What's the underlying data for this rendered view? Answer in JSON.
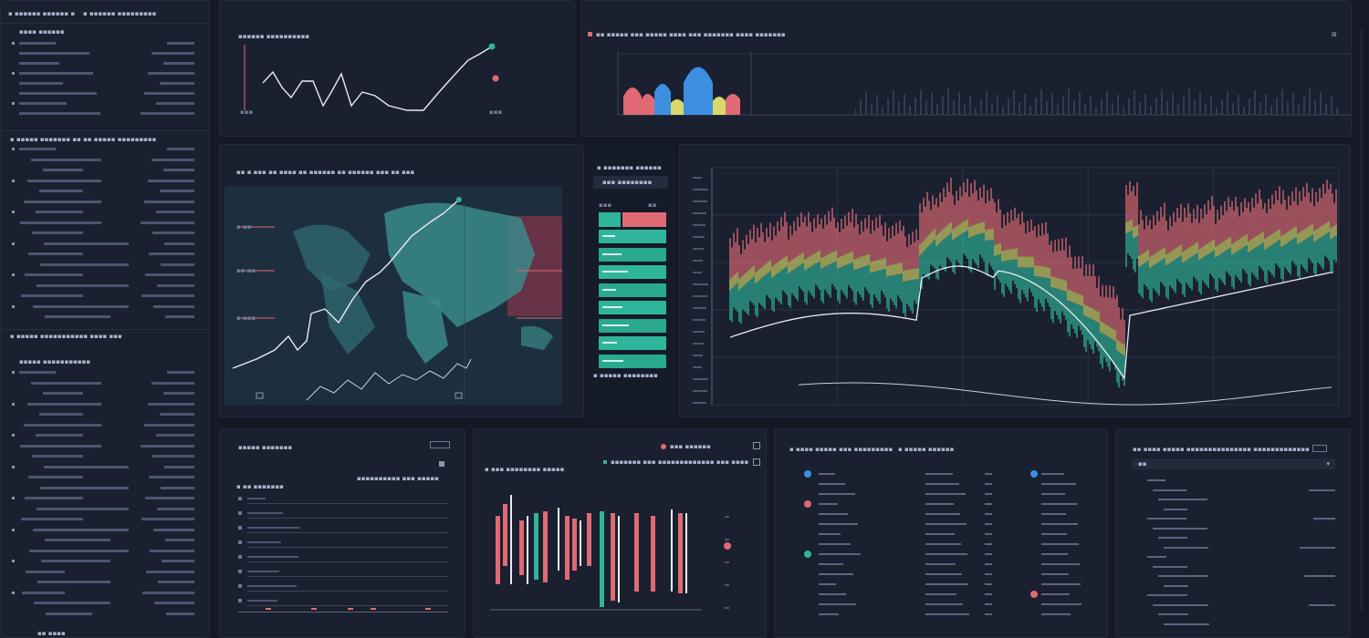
{
  "sidebar": {
    "header_left": "▪ ▪▪▪▪▪▪ ▪▪▪▪▪▪ ▪",
    "header_right": "▪ ▪▪▪▪▪▪ ▪▪▪▪▪▪▪▪▪",
    "section_1_title": "▪▪▪▪ ▪▪▪▪▪▪",
    "section_2_title": "▪ ▪▪▪▪▪ ▪▪▪▪▪▪▪ ▪▪ ▪▪ ▪▪▪▪▪ ▪▪▪▪▪▪▪▪▪",
    "section_3_title": "▪ ▪▪▪▪▪ ▪▪▪▪▪▪▪▪▪▪▪ ▪▪▪▪ ▪▪▪",
    "section_4_title": "▪▪▪▪▪ ▪▪▪▪▪▪▪▪▪▪▪",
    "footer": "▪▪ ▪▪▪▪"
  },
  "top_line_panel": {
    "title": "▪▪▪▪▪▪ ▪▪▪▪▪▪▪▪▪▪",
    "x_start": "▪▪▪",
    "x_end": "▪▪▪"
  },
  "top_bar_panel": {
    "title": "▪▪ ▪▪▪▪▪ ▪▪▪ ▪▪▪▪▪ ▪▪▪▪ ▪▪▪ ▪▪▪▪▪▪▪ ▪▪▪▪ ▪▪▪▪▪▪▪",
    "icon_right": "⊞"
  },
  "map_panel": {
    "title": "▪▪ ▪ ▪▪▪ ▪▪ ▪▪▪▪ ▪▪ ▪▪▪▪▪▪ ▪▪ ▪▪▪▪▪▪ ▪▪▪ ▪▪ ▪▪▪",
    "labels": [
      "▪ ▪▪",
      "▪▪ ▪▪",
      "▪ ▪▪▪"
    ]
  },
  "list_panel": {
    "title": "▪ ▪▪▪▪▪▪▪ ▪▪▪▪▪▪",
    "subtitle": "▪▪▪ ▪▪▪▪▪▪▪▪",
    "col_left": "▪▪▪",
    "col_right": "▪▪",
    "footer": "▪ ▪▪▪▪▪ ▪▪▪▪▪▪▪▪"
  },
  "bottom_panel_1": {
    "title": "▪▪▪▪▪ ▪▪▪▪▪▪▪",
    "sub": "▪▪▪▪▪▪▪▪▪▪ ▪▪▪ ▪▪▪▪▪",
    "legend": "▪ ▪▪ ▪▪▪▪▪▪▪"
  },
  "bottom_panel_2": {
    "title": "▪ ▪▪▪ ▪▪▪▪▪▪▪▪ ▪▪▪▪▪",
    "badge": "▪▪▪ ▪▪▪▪▪▪",
    "legend": "▪▪▪▪▪▪▪ ▪▪▪ ▪▪▪▪▪▪▪▪▪▪▪▪▪ ▪▪▪ ▪▪▪▪"
  },
  "bottom_panel_3": {
    "title_left": "▪ ▪▪▪▪ ▪▪▪▪▪ ▪▪▪ ▪▪▪▪▪▪▪▪▪",
    "title_right": "▪ ▪▪▪▪▪ ▪▪▪▪▪▪"
  },
  "bottom_panel_4": {
    "title": "▪▪ ▪▪▪▪ ▪▪▪▪▪ ▪▪▪▪▪▪▪▪▪▪▪▪▪▪▪ ▪▪▪▪▪▪▪▪▪▪▪▪▪",
    "select_value": "▪▪"
  },
  "colors": {
    "background": "#141925",
    "panel": "#1a2030",
    "red": "#e06a74",
    "green": "#2fb59b",
    "yellow": "#d8d96a",
    "blue": "#3d8fe0",
    "line": "#e8ecf2"
  }
}
